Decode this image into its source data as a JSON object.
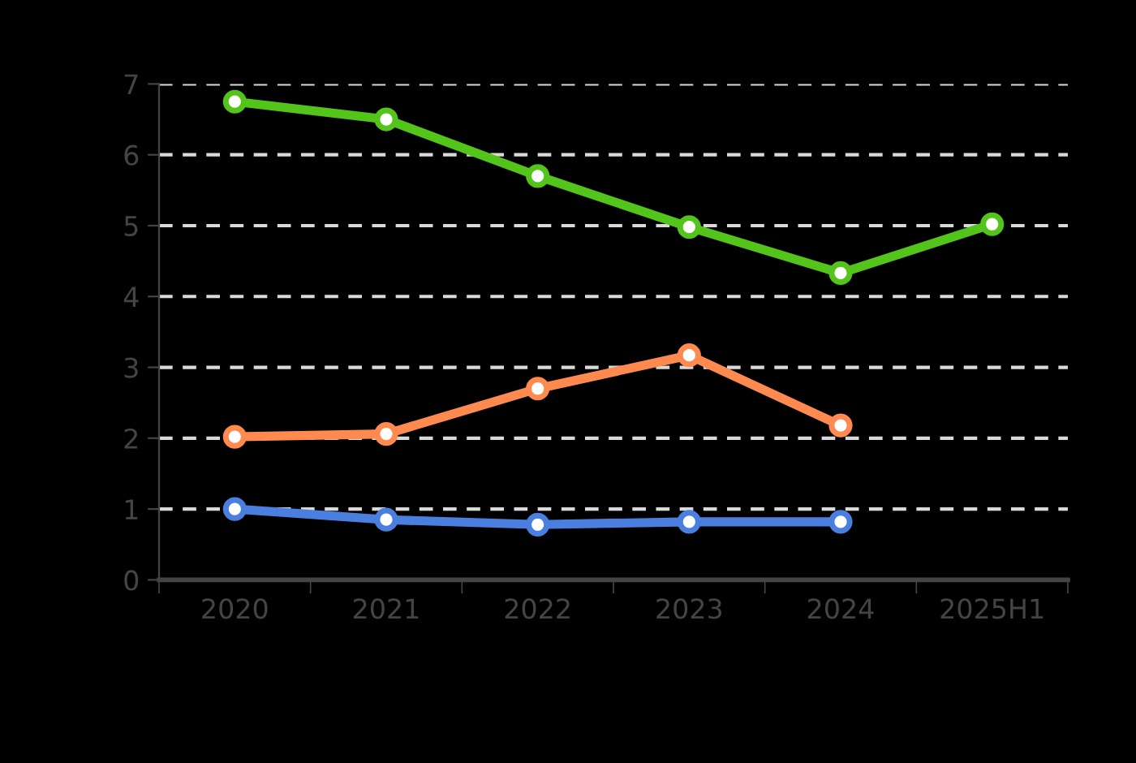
{
  "chart_data": {
    "type": "line",
    "categories": [
      "2020",
      "2021",
      "2022",
      "2023",
      "2024",
      "2025H1"
    ],
    "series": [
      {
        "color": "#52c41a",
        "values": [
          6.75,
          6.5,
          5.7,
          4.98,
          4.33,
          5.02
        ]
      },
      {
        "color": "#4a7fe0",
        "values": [
          1.0,
          0.85,
          0.78,
          0.82,
          0.82,
          null
        ]
      },
      {
        "color": "#ff8a50",
        "values": [
          2.02,
          2.06,
          2.7,
          3.17,
          2.18,
          null
        ]
      }
    ],
    "ylim": [
      0,
      7
    ],
    "yticks": [
      0,
      1,
      2,
      3,
      4,
      5,
      6,
      7
    ],
    "grid": "y",
    "marker": "circle",
    "line_style": "solid"
  }
}
